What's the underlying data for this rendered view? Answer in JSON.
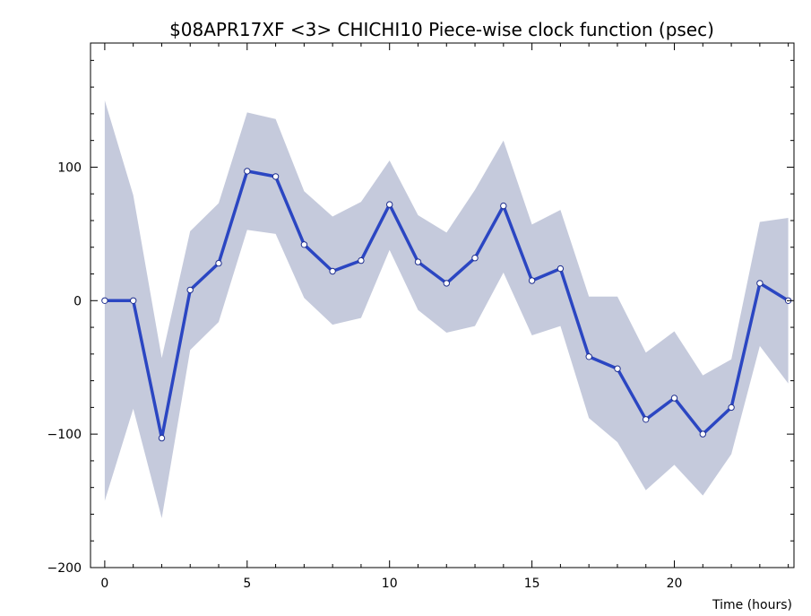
{
  "chart_data": {
    "type": "line",
    "title": "$08APR17XF <3>  CHICHI10  Piece-wise clock function (psec)",
    "xlabel": "Time (hours)",
    "ylabel": "",
    "xlim": [
      -0.5,
      24.2
    ],
    "ylim": [
      -200,
      193
    ],
    "x_ticks": [
      "0",
      "5",
      "10",
      "15",
      "20"
    ],
    "y_ticks": [
      "100",
      "0",
      "−100",
      "−200"
    ],
    "grid": false,
    "colors": {
      "line": "#2b46c2",
      "band": "#c5cadc",
      "marker_fill": "#ffffff",
      "axis": "#000000"
    },
    "series": [
      {
        "x": [
          0,
          1,
          2,
          3,
          4,
          5,
          6,
          7,
          8,
          9,
          10,
          11,
          12,
          13,
          14,
          15,
          16,
          17,
          18,
          19,
          20,
          21,
          22,
          23,
          24
        ],
        "values": [
          0,
          0,
          -103,
          8,
          28,
          97,
          93,
          42,
          22,
          30,
          72,
          29,
          13,
          32,
          71,
          15,
          24,
          -42,
          -51,
          -89,
          -73,
          -100,
          -80,
          13,
          0
        ],
        "upper": [
          150,
          79,
          -43,
          52,
          73,
          141,
          136,
          82,
          63,
          74,
          105,
          64,
          51,
          83,
          120,
          57,
          68,
          3,
          3,
          -39,
          -23,
          -56,
          -44,
          59,
          62
        ],
        "lower": [
          -150,
          -81,
          -163,
          -37,
          -16,
          53,
          50,
          2,
          -18,
          -13,
          38,
          -7,
          -24,
          -19,
          21,
          -26,
          -19,
          -88,
          -106,
          -142,
          -123,
          -146,
          -115,
          -34,
          -62
        ]
      }
    ]
  }
}
